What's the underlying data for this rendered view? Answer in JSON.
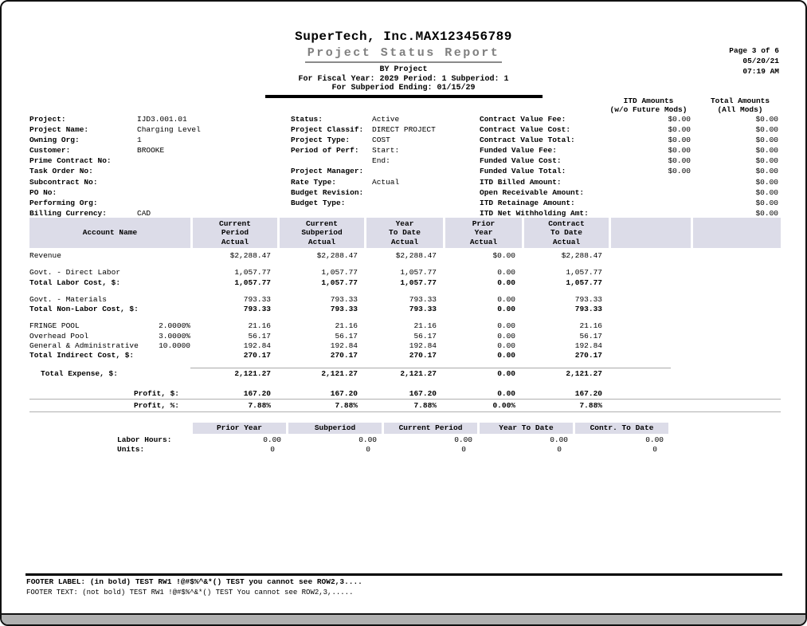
{
  "header": {
    "company": "SuperTech, Inc.MAX123456789",
    "title": "Project Status Report",
    "by_line": "BY Project",
    "fiscal_line": "For Fiscal Year: 2029 Period: 1 Subperiod: 1",
    "subperiod_line": "For Subperiod Ending: 01/15/29"
  },
  "page_info": {
    "page": "Page 3 of 6",
    "date": "05/20/21",
    "time": "07:19 AM"
  },
  "info": {
    "left": [
      {
        "label": "Project:",
        "value": "IJD3.001.01"
      },
      {
        "label": "Project Name:",
        "value": "Charging Level"
      },
      {
        "label": "Owning Org:",
        "value": "1"
      },
      {
        "label": "Customer:",
        "value": "BROOKE"
      },
      {
        "label": "Prime Contract No:",
        "value": ""
      },
      {
        "label": "Task Order No:",
        "value": ""
      },
      {
        "label": "Subcontract No:",
        "value": ""
      },
      {
        "label": "PO No:",
        "value": ""
      },
      {
        "label": "Performing Org:",
        "value": ""
      },
      {
        "label": "Billing Currency:",
        "value": "CAD"
      }
    ],
    "middle": [
      {
        "label": "Status:",
        "value": "Active"
      },
      {
        "label": "Project Classif:",
        "value": "DIRECT PROJECT"
      },
      {
        "label": "Project Type:",
        "value": "COST"
      },
      {
        "label": "Period of Perf:",
        "value": "Start:"
      },
      {
        "label": "",
        "value": "End:"
      },
      {
        "label": "Project Manager:",
        "value": ""
      },
      {
        "label": "Rate Type:",
        "value": "Actual"
      },
      {
        "label": "Budget Revision:",
        "value": ""
      },
      {
        "label": "Budget Type:",
        "value": ""
      }
    ]
  },
  "amounts": {
    "itd_header": [
      "ITD Amounts",
      "(w/o Future Mods)"
    ],
    "total_header": [
      "Total Amounts",
      "(All Mods)"
    ],
    "rows": [
      {
        "label": "Contract Value Fee:",
        "itd": "$0.00",
        "total": "$0.00"
      },
      {
        "label": "Contract Value Cost:",
        "itd": "$0.00",
        "total": "$0.00"
      },
      {
        "label": "Contract Value Total:",
        "itd": "$0.00",
        "total": "$0.00"
      },
      {
        "label": "Funded Value Fee:",
        "itd": "$0.00",
        "total": "$0.00"
      },
      {
        "label": "Funded Value Cost:",
        "itd": "$0.00",
        "total": "$0.00"
      },
      {
        "label": "Funded Value Total:",
        "itd": "$0.00",
        "total": "$0.00"
      },
      {
        "label": "ITD Billed Amount:",
        "itd": "",
        "total": "$0.00"
      },
      {
        "label": "Open Receivable Amount:",
        "itd": "",
        "total": "$0.00"
      },
      {
        "label": "ITD Retainage Amount:",
        "itd": "",
        "total": "$0.00"
      },
      {
        "label": "ITD Net Withholding Amt:",
        "itd": "",
        "total": "$0.00"
      }
    ]
  },
  "main_table": {
    "headers": [
      [
        "Account Name"
      ],
      [
        "Current",
        "Period",
        "Actual"
      ],
      [
        "Current",
        "Subperiod",
        "Actual"
      ],
      [
        "Year",
        "To Date",
        "Actual"
      ],
      [
        "Prior",
        "Year",
        "Actual"
      ],
      [
        "Contract",
        "To Date",
        "Actual"
      ],
      [],
      []
    ],
    "rows": [
      {
        "type": "data",
        "label": "Revenue",
        "rate": "",
        "bold": false,
        "indent": 0,
        "values": [
          "$2,288.47",
          "$2,288.47",
          "$2,288.47",
          "$0.00",
          "$2,288.47"
        ]
      },
      {
        "type": "spacer",
        "h": 9
      },
      {
        "type": "data",
        "label": "Govt. - Direct Labor",
        "rate": "",
        "bold": false,
        "indent": 0,
        "values": [
          "1,057.77",
          "1,057.77",
          "1,057.77",
          "0.00",
          "1,057.77"
        ]
      },
      {
        "type": "data",
        "label": "Total Labor Cost, $:",
        "rate": "",
        "bold": true,
        "indent": 0,
        "values": [
          "1,057.77",
          "1,057.77",
          "1,057.77",
          "0.00",
          "1,057.77"
        ]
      },
      {
        "type": "spacer",
        "h": 9
      },
      {
        "type": "data",
        "label": "Govt. - Materials",
        "rate": "",
        "bold": false,
        "indent": 0,
        "values": [
          "793.33",
          "793.33",
          "793.33",
          "0.00",
          "793.33"
        ]
      },
      {
        "type": "data",
        "label": "Total Non-Labor Cost, $:",
        "rate": "",
        "bold": true,
        "indent": 0,
        "values": [
          "793.33",
          "793.33",
          "793.33",
          "0.00",
          "793.33"
        ]
      },
      {
        "type": "spacer",
        "h": 9
      },
      {
        "type": "data",
        "label": "FRINGE POOL",
        "rate": "2.0000%",
        "bold": false,
        "indent": 0,
        "values": [
          "21.16",
          "21.16",
          "21.16",
          "0.00",
          "21.16"
        ]
      },
      {
        "type": "data",
        "label": "Overhead Pool",
        "rate": "3.0000%",
        "bold": false,
        "indent": 0,
        "values": [
          "56.17",
          "56.17",
          "56.17",
          "0.00",
          "56.17"
        ]
      },
      {
        "type": "data",
        "label": "General & Administrative",
        "rate": "10.0000",
        "bold": false,
        "indent": 0,
        "values": [
          "192.84",
          "192.84",
          "192.84",
          "0.00",
          "192.84"
        ]
      },
      {
        "type": "data",
        "label": "Total Indirect Cost, $:",
        "rate": "",
        "bold": true,
        "indent": 0,
        "values": [
          "270.17",
          "270.17",
          "270.17",
          "0.00",
          "270.17"
        ]
      },
      {
        "type": "spacer",
        "h": 10
      },
      {
        "type": "data",
        "label": "Total Expense, $:",
        "rate": "",
        "bold": true,
        "indent": 1,
        "topline": true,
        "values": [
          "2,121.27",
          "2,121.27",
          "2,121.27",
          "0.00",
          "2,121.27"
        ]
      },
      {
        "type": "spacer",
        "h": 13
      },
      {
        "type": "data",
        "label": "Profit, $:",
        "rate": "",
        "bold": true,
        "indent": 2,
        "values": [
          "167.20",
          "167.20",
          "167.20",
          "0.00",
          "167.20"
        ]
      },
      {
        "type": "data",
        "label": "Profit, %:",
        "rate": "",
        "bold": true,
        "indent": 2,
        "boxlines": true,
        "values": [
          "7.88%",
          "7.88%",
          "7.88%",
          "0.00%",
          "7.88%"
        ]
      }
    ]
  },
  "hours_table": {
    "headers": [
      "Prior Year",
      "Subperiod",
      "Current Period",
      "Year To Date",
      "Contr. To Date"
    ],
    "rows": [
      {
        "label": "Labor Hours:",
        "values": [
          "0.00",
          "0.00",
          "0.00",
          "0.00",
          "0.00"
        ]
      },
      {
        "label": "Units:",
        "values": [
          "0",
          "0",
          "0",
          "0",
          "0"
        ]
      }
    ]
  },
  "footer": {
    "label_line": "FOOTER LABEL: (in bold) TEST RW1 !@#$%^&*() TEST you cannot see ROW2,3....",
    "text_line": "FOOTER TEXT: (not bold) TEST RW1 !@#$%^&*() TEST You cannot see ROW2,3,....."
  },
  "colors": {
    "header_band": "#dcdce8",
    "title_gray": "#7f7f7f"
  }
}
